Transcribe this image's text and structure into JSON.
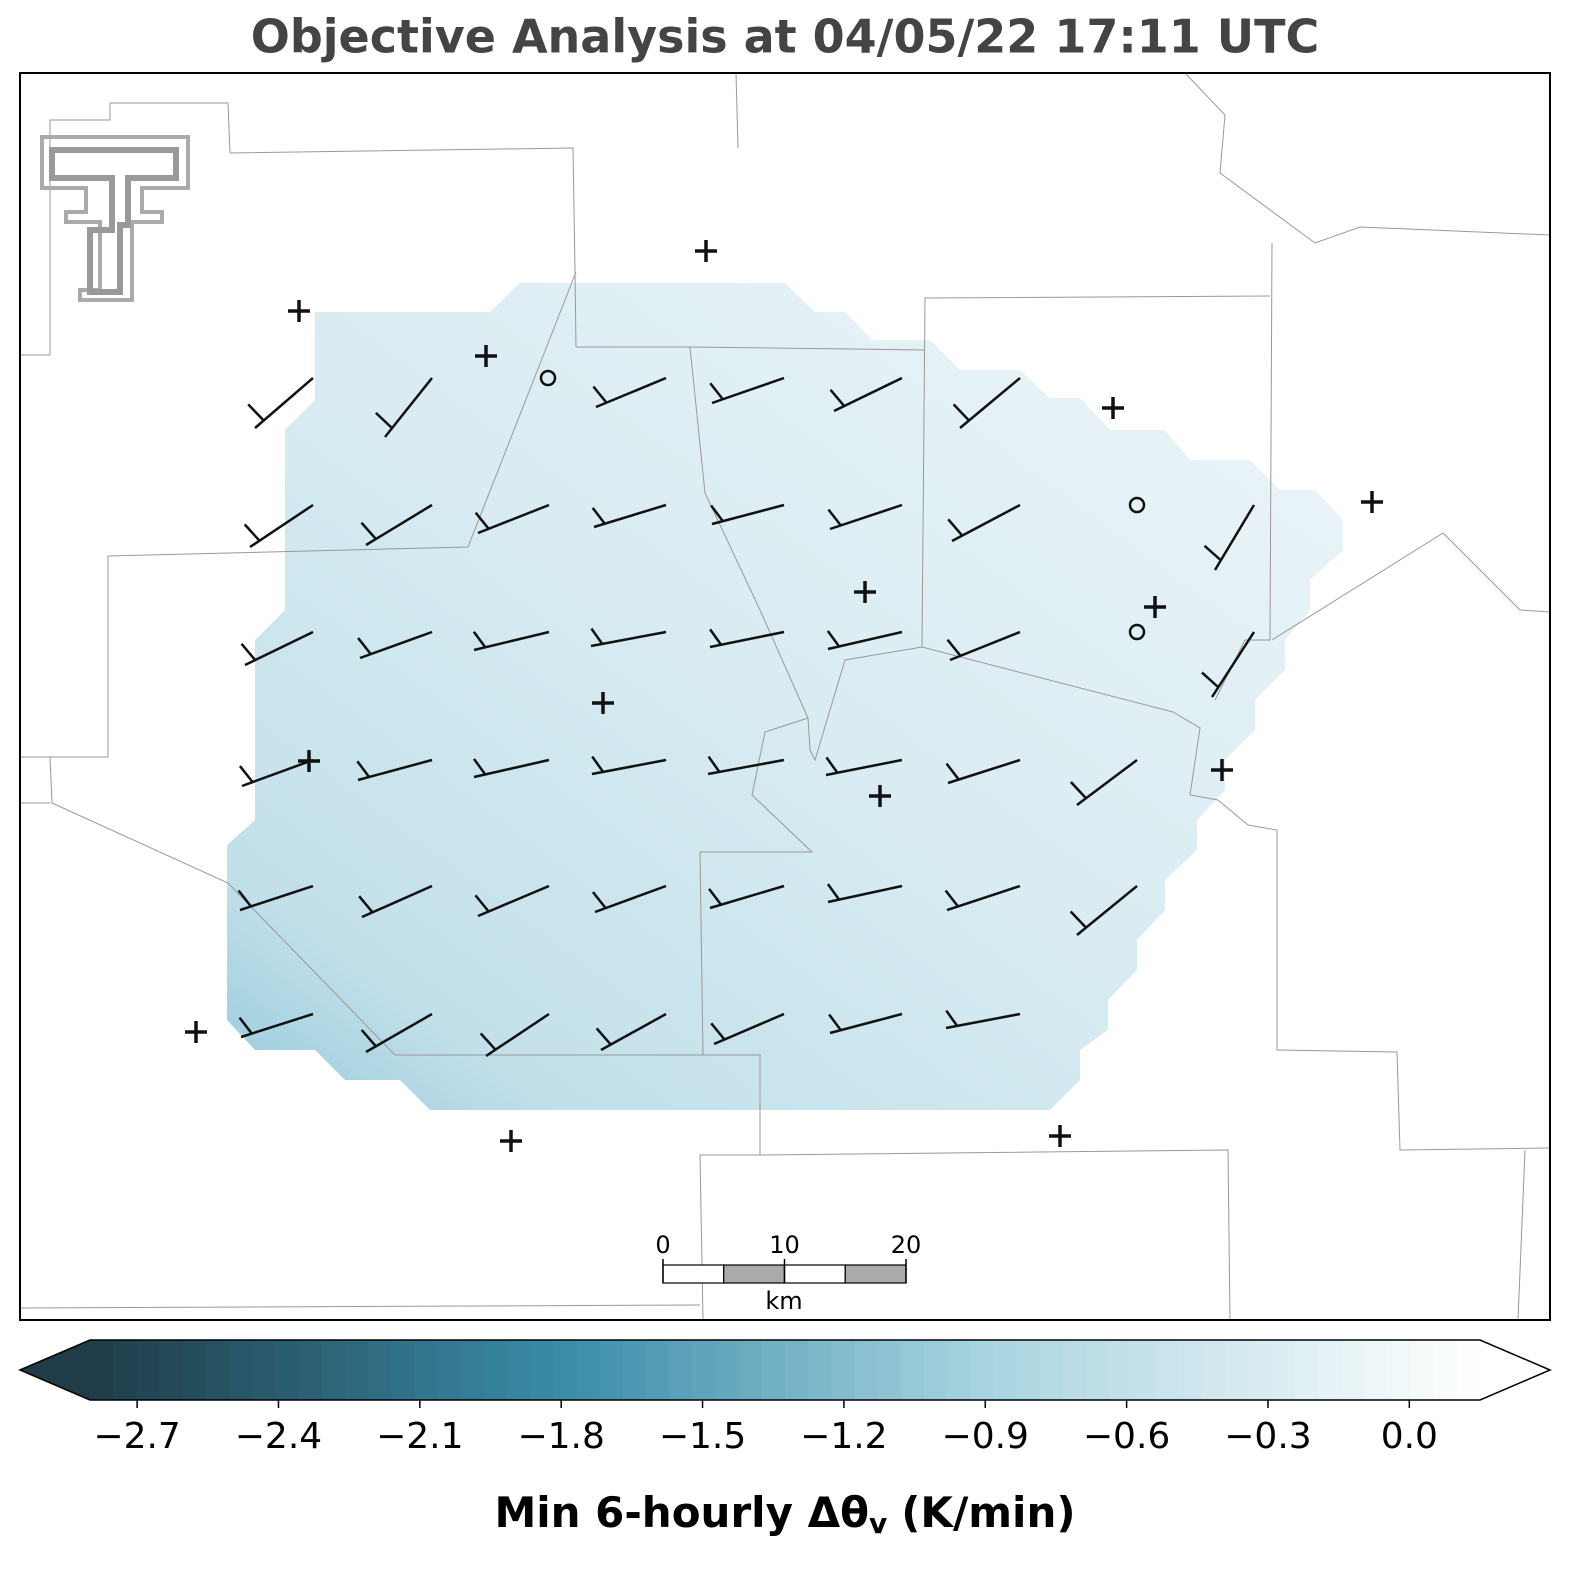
{
  "title": "Objective Analysis at 04/05/22 17:11 UTC",
  "colorbar": {
    "range": [
      -2.8,
      0.15
    ],
    "ticks": [
      {
        "value": -2.7,
        "label": "−2.7"
      },
      {
        "value": -2.4,
        "label": "−2.4"
      },
      {
        "value": -2.1,
        "label": "−2.1"
      },
      {
        "value": -1.8,
        "label": "−1.8"
      },
      {
        "value": -1.5,
        "label": "−1.5"
      },
      {
        "value": -1.2,
        "label": "−1.2"
      },
      {
        "value": -0.9,
        "label": "−0.9"
      },
      {
        "value": -0.6,
        "label": "−0.6"
      },
      {
        "value": -0.3,
        "label": "−0.3"
      },
      {
        "value": 0,
        "label": "0.0"
      }
    ],
    "label": {
      "text": "Min 6-hourly Δθ",
      "subscript": "v",
      "unit": "(K/min)"
    }
  },
  "scale_bar": {
    "ticks": [
      0,
      10,
      20
    ],
    "unit": "km"
  }
}
